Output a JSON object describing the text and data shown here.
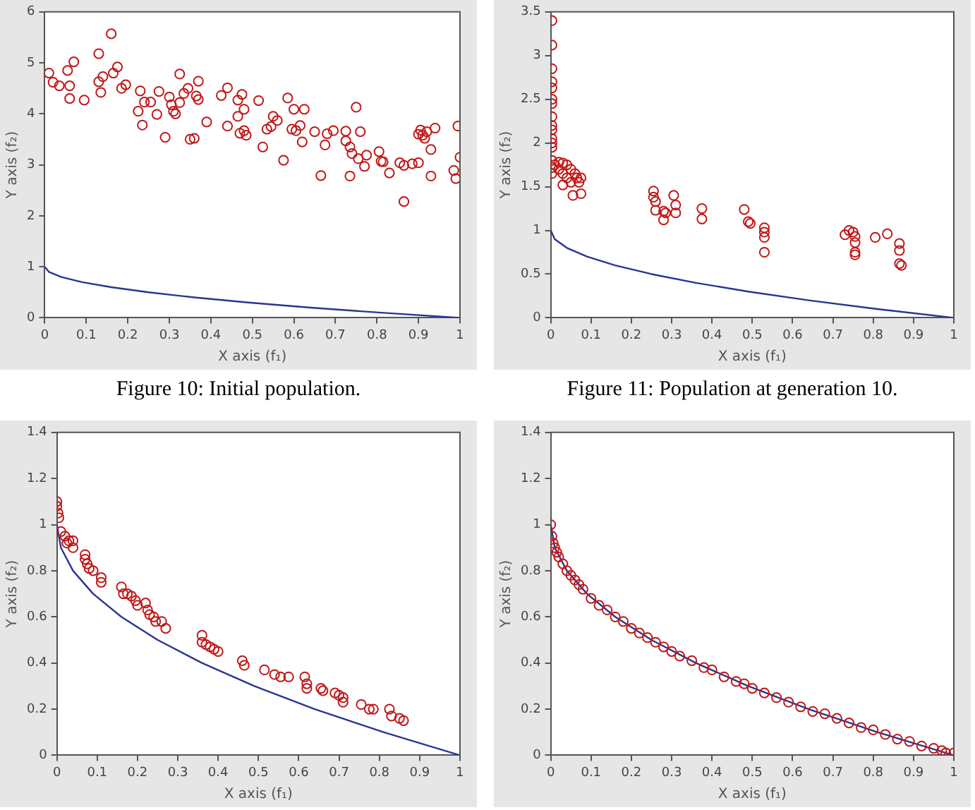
{
  "chart_data": [
    {
      "type": "scatter",
      "xlabel": "X axis (f₁)",
      "ylabel": "Y axis (f₂)",
      "xlim": [
        0,
        1
      ],
      "xticks": [
        0,
        0.1,
        0.2,
        0.3,
        0.4,
        0.5,
        0.6,
        0.7,
        0.8,
        0.9,
        1
      ],
      "ylim": [
        0,
        6
      ],
      "yticks": [
        0,
        1,
        2,
        3,
        4,
        5,
        6
      ],
      "grid": false,
      "legend": false,
      "marker": "circle",
      "annotations": [
        "Figure 10: Initial population."
      ],
      "series": [
        {
          "type": "scatter",
          "color": "#c01818",
          "x": [
            0.01,
            0.02,
            0.035,
            0.055,
            0.06,
            0.06,
            0.07,
            0.095,
            0.13,
            0.13,
            0.135,
            0.14,
            0.16,
            0.165,
            0.175,
            0.185,
            0.195,
            0.225,
            0.23,
            0.235,
            0.24,
            0.255,
            0.27,
            0.275,
            0.29,
            0.3,
            0.305,
            0.31,
            0.315,
            0.325,
            0.325,
            0.335,
            0.345,
            0.35,
            0.36,
            0.365,
            0.37,
            0.37,
            0.39,
            0.425,
            0.44,
            0.44,
            0.465,
            0.465,
            0.47,
            0.475,
            0.48,
            0.48,
            0.485,
            0.515,
            0.525,
            0.535,
            0.545,
            0.55,
            0.56,
            0.575,
            0.585,
            0.595,
            0.6,
            0.605,
            0.615,
            0.62,
            0.625,
            0.65,
            0.665,
            0.675,
            0.68,
            0.695,
            0.725,
            0.725,
            0.735,
            0.74,
            0.735,
            0.75,
            0.755,
            0.76,
            0.77,
            0.775,
            0.805,
            0.81,
            0.815,
            0.83,
            0.855,
            0.865,
            0.865,
            0.885,
            0.9,
            0.9,
            0.905,
            0.91,
            0.915,
            0.92,
            0.93,
            0.93,
            0.94,
            0.985,
            0.99,
            0.995,
            1.0
          ],
          "values": [
            4.8,
            4.62,
            4.55,
            4.85,
            4.3,
            4.55,
            5.02,
            4.27,
            5.18,
            4.63,
            4.42,
            4.73,
            5.57,
            4.8,
            4.92,
            4.5,
            4.57,
            4.05,
            4.45,
            3.78,
            4.23,
            4.23,
            3.99,
            4.44,
            3.54,
            4.33,
            4.18,
            4.05,
            4.0,
            4.22,
            4.78,
            4.4,
            4.5,
            3.5,
            3.52,
            4.35,
            4.28,
            4.64,
            3.84,
            4.36,
            4.51,
            3.76,
            3.95,
            4.27,
            3.62,
            4.38,
            3.67,
            4.09,
            3.58,
            4.26,
            3.35,
            3.7,
            3.75,
            3.95,
            3.87,
            3.09,
            4.31,
            3.7,
            4.09,
            3.67,
            3.77,
            3.45,
            4.09,
            3.65,
            2.79,
            3.39,
            3.61,
            3.67,
            3.66,
            3.47,
            3.35,
            3.22,
            2.78,
            4.13,
            3.12,
            3.65,
            2.97,
            3.19,
            3.26,
            3.07,
            3.06,
            2.84,
            3.04,
            2.99,
            2.28,
            3.02,
            3.04,
            3.6,
            3.68,
            3.58,
            3.52,
            3.65,
            3.3,
            2.78,
            3.72,
            2.89,
            2.73,
            3.76,
            3.15
          ]
        },
        {
          "type": "line",
          "color": "#2a3590",
          "marker": "none",
          "x": [
            0,
            0.01,
            0.04,
            0.09,
            0.16,
            0.25,
            0.36,
            0.49,
            0.64,
            0.81,
            1
          ],
          "values": [
            1,
            0.9,
            0.8,
            0.7,
            0.6,
            0.5,
            0.4,
            0.3,
            0.2,
            0.1,
            0
          ]
        }
      ]
    },
    {
      "type": "scatter",
      "xlabel": "X axis (f₁)",
      "ylabel": "Y axis (f₂)",
      "xlim": [
        0,
        1
      ],
      "xticks": [
        0,
        0.1,
        0.2,
        0.3,
        0.4,
        0.5,
        0.6,
        0.7,
        0.8,
        0.9,
        1
      ],
      "ylim": [
        0,
        3.5
      ],
      "yticks": [
        0,
        0.5,
        1,
        1.5,
        2,
        2.5,
        3,
        3.5
      ],
      "grid": false,
      "legend": false,
      "marker": "circle",
      "annotations": [
        "Figure 11: Population at generation 10."
      ],
      "series": [
        {
          "type": "scatter",
          "color": "#c01818",
          "x": [
            0.003,
            0.003,
            0.003,
            0.003,
            0.003,
            0.003,
            0.003,
            0.003,
            0.003,
            0.003,
            0.003,
            0.003,
            0.003,
            0.003,
            0.003,
            0.003,
            0.01,
            0.02,
            0.02,
            0.03,
            0.03,
            0.03,
            0.04,
            0.04,
            0.05,
            0.05,
            0.055,
            0.06,
            0.065,
            0.07,
            0.075,
            0.075,
            0.255,
            0.255,
            0.26,
            0.26,
            0.28,
            0.28,
            0.285,
            0.305,
            0.31,
            0.31,
            0.375,
            0.375,
            0.48,
            0.49,
            0.495,
            0.53,
            0.53,
            0.53,
            0.53,
            0.73,
            0.74,
            0.75,
            0.755,
            0.755,
            0.755,
            0.755,
            0.805,
            0.835,
            0.865,
            0.865,
            0.865,
            0.87
          ],
          "values": [
            3.4,
            3.12,
            2.85,
            2.7,
            2.63,
            2.5,
            2.45,
            2.3,
            2.2,
            2.15,
            2.05,
            2.0,
            1.95,
            1.8,
            1.72,
            1.65,
            1.75,
            1.7,
            1.78,
            1.77,
            1.65,
            1.52,
            1.75,
            1.6,
            1.7,
            1.55,
            1.4,
            1.65,
            1.6,
            1.55,
            1.6,
            1.42,
            1.45,
            1.38,
            1.33,
            1.23,
            1.22,
            1.12,
            1.2,
            1.4,
            1.29,
            1.2,
            1.25,
            1.13,
            1.24,
            1.1,
            1.08,
            1.03,
            0.98,
            0.92,
            0.75,
            0.95,
            1.0,
            0.98,
            0.93,
            0.86,
            0.75,
            0.72,
            0.92,
            0.96,
            0.85,
            0.77,
            0.62,
            0.6
          ]
        },
        {
          "type": "line",
          "color": "#2a3590",
          "marker": "none",
          "x": [
            0,
            0.01,
            0.04,
            0.09,
            0.16,
            0.25,
            0.36,
            0.49,
            0.64,
            0.81,
            1
          ],
          "values": [
            1,
            0.9,
            0.8,
            0.7,
            0.6,
            0.5,
            0.4,
            0.3,
            0.2,
            0.1,
            0
          ]
        }
      ]
    },
    {
      "type": "scatter",
      "xlabel": "X axis (f₁)",
      "ylabel": "Y axis (f₂)",
      "xlim": [
        0,
        1
      ],
      "xticks": [
        0,
        0.1,
        0.2,
        0.3,
        0.4,
        0.5,
        0.6,
        0.7,
        0.8,
        0.9,
        1
      ],
      "ylim": [
        0,
        1.4
      ],
      "yticks": [
        0,
        0.2,
        0.4,
        0.6,
        0.8,
        1,
        1.2,
        1.4
      ],
      "grid": false,
      "legend": false,
      "marker": "circle",
      "series": [
        {
          "type": "scatter",
          "color": "#c01818",
          "x": [
            0,
            0,
            0.003,
            0.005,
            0.01,
            0.02,
            0.03,
            0.025,
            0.04,
            0.04,
            0.07,
            0.07,
            0.075,
            0.08,
            0.09,
            0.11,
            0.11,
            0.16,
            0.165,
            0.175,
            0.185,
            0.195,
            0.2,
            0.22,
            0.225,
            0.23,
            0.24,
            0.245,
            0.26,
            0.27,
            0.36,
            0.36,
            0.37,
            0.38,
            0.39,
            0.4,
            0.46,
            0.465,
            0.515,
            0.54,
            0.555,
            0.575,
            0.615,
            0.62,
            0.62,
            0.655,
            0.66,
            0.69,
            0.7,
            0.71,
            0.71,
            0.755,
            0.775,
            0.785,
            0.825,
            0.83,
            0.85,
            0.86
          ],
          "values": [
            1.1,
            1.08,
            1.05,
            1.03,
            0.97,
            0.95,
            0.93,
            0.92,
            0.93,
            0.9,
            0.87,
            0.85,
            0.83,
            0.81,
            0.8,
            0.77,
            0.75,
            0.73,
            0.7,
            0.7,
            0.69,
            0.67,
            0.65,
            0.66,
            0.63,
            0.61,
            0.6,
            0.58,
            0.58,
            0.55,
            0.52,
            0.49,
            0.48,
            0.47,
            0.46,
            0.45,
            0.41,
            0.39,
            0.37,
            0.35,
            0.34,
            0.34,
            0.34,
            0.31,
            0.29,
            0.29,
            0.28,
            0.27,
            0.26,
            0.25,
            0.23,
            0.22,
            0.2,
            0.2,
            0.2,
            0.17,
            0.16,
            0.15
          ]
        },
        {
          "type": "line",
          "color": "#2a3590",
          "marker": "none",
          "x": [
            0,
            0.01,
            0.04,
            0.09,
            0.16,
            0.25,
            0.36,
            0.49,
            0.64,
            0.81,
            1
          ],
          "values": [
            1,
            0.9,
            0.8,
            0.7,
            0.6,
            0.5,
            0.4,
            0.3,
            0.2,
            0.1,
            0
          ]
        }
      ]
    },
    {
      "type": "scatter",
      "xlabel": "X axis (f₁)",
      "ylabel": "Y axis (f₂)",
      "xlim": [
        0,
        1
      ],
      "xticks": [
        0,
        0.1,
        0.2,
        0.3,
        0.4,
        0.5,
        0.6,
        0.7,
        0.8,
        0.9,
        1
      ],
      "ylim": [
        0,
        1.4
      ],
      "yticks": [
        0,
        0.2,
        0.4,
        0.6,
        0.8,
        1,
        1.2,
        1.4
      ],
      "grid": false,
      "legend": false,
      "marker": "circle",
      "series": [
        {
          "type": "scatter",
          "color": "#c01818",
          "x": [
            0,
            0.003,
            0.006,
            0.01,
            0.015,
            0.02,
            0.03,
            0.04,
            0.05,
            0.06,
            0.07,
            0.08,
            0.1,
            0.12,
            0.14,
            0.16,
            0.18,
            0.2,
            0.22,
            0.24,
            0.26,
            0.28,
            0.3,
            0.32,
            0.35,
            0.38,
            0.4,
            0.43,
            0.46,
            0.48,
            0.5,
            0.53,
            0.56,
            0.59,
            0.62,
            0.65,
            0.68,
            0.71,
            0.74,
            0.77,
            0.8,
            0.83,
            0.86,
            0.89,
            0.92,
            0.95,
            0.97,
            0.98,
            1.0
          ],
          "values": [
            1,
            0.95,
            0.92,
            0.9,
            0.88,
            0.86,
            0.83,
            0.8,
            0.78,
            0.76,
            0.74,
            0.72,
            0.68,
            0.65,
            0.63,
            0.6,
            0.58,
            0.55,
            0.53,
            0.51,
            0.49,
            0.47,
            0.45,
            0.43,
            0.41,
            0.38,
            0.37,
            0.34,
            0.32,
            0.31,
            0.29,
            0.27,
            0.25,
            0.23,
            0.21,
            0.19,
            0.18,
            0.16,
            0.14,
            0.12,
            0.11,
            0.09,
            0.07,
            0.06,
            0.04,
            0.03,
            0.02,
            0.01,
            0.01
          ]
        },
        {
          "type": "line",
          "color": "#2a3590",
          "marker": "none",
          "x": [
            0,
            0.01,
            0.04,
            0.09,
            0.16,
            0.25,
            0.36,
            0.49,
            0.64,
            0.81,
            1
          ],
          "values": [
            1,
            0.9,
            0.8,
            0.7,
            0.6,
            0.5,
            0.4,
            0.3,
            0.2,
            0.1,
            0
          ]
        }
      ]
    }
  ]
}
